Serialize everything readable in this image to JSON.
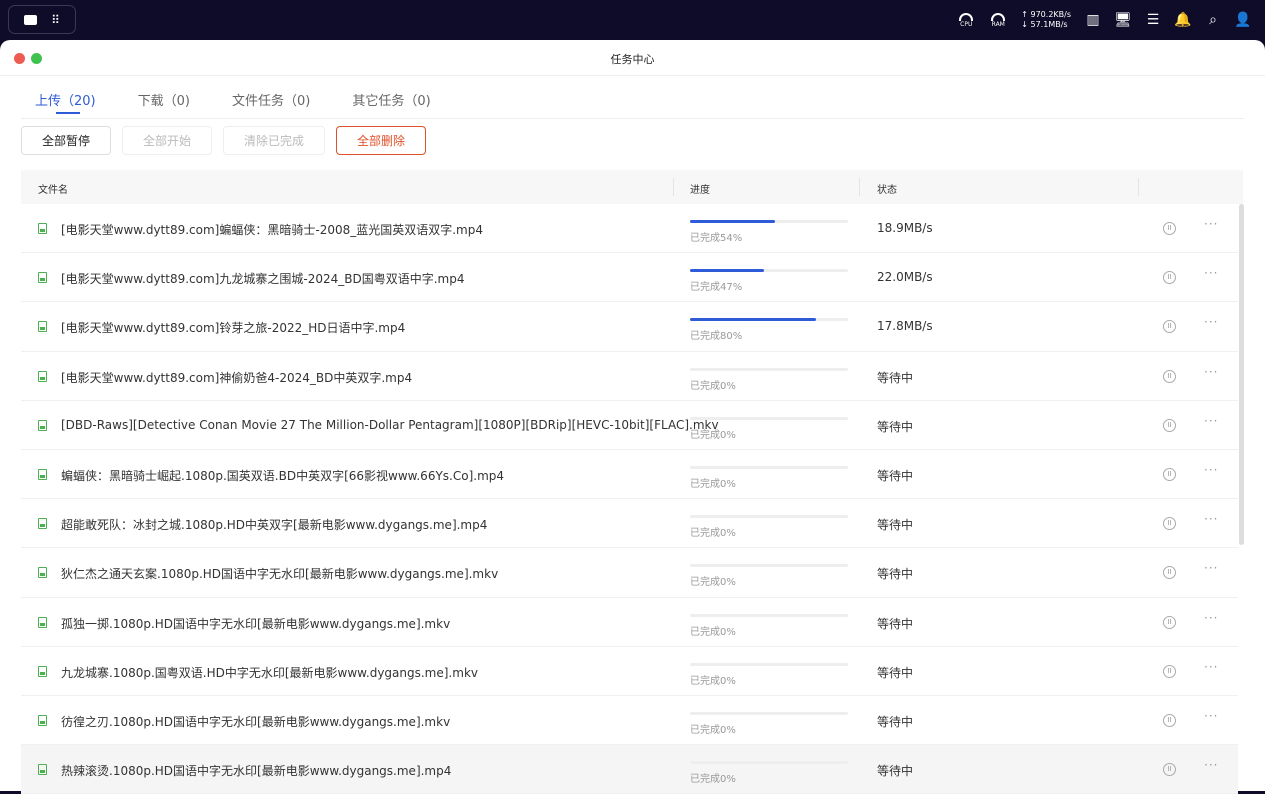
{
  "topbar": {
    "cpu": "CPU",
    "ram": "RAM",
    "upload_speed": "970.2KB/s",
    "download_speed": "57.1MB/s"
  },
  "window": {
    "title": "任务中心",
    "close_color": "#ee5b50",
    "zoom_color": "#3fc24f"
  },
  "tabs": [
    {
      "label": "上传（20)",
      "active": true
    },
    {
      "label": "下载（0)"
    },
    {
      "label": "文件任务（0)"
    },
    {
      "label": "其它任务（0)"
    }
  ],
  "toolbar": {
    "pause_all": "全部暂停",
    "start_all": "全部开始",
    "clear_done": "清除已完成",
    "delete_all": "全部删除"
  },
  "columns": {
    "name": "文件名",
    "progress": "进度",
    "status": "状态"
  },
  "accent": "#2e5bd8",
  "rows": [
    {
      "name": "[电影天堂www.dytt89.com]蝙蝠侠：黑暗骑士-2008_蓝光国英双语双字.mp4",
      "progress": 54,
      "progress_label": "已完成54%",
      "status": "18.9MB/s"
    },
    {
      "name": "[电影天堂www.dytt89.com]九龙城寨之围城-2024_BD国粤双语中字.mp4",
      "progress": 47,
      "progress_label": "已完成47%",
      "status": "22.0MB/s"
    },
    {
      "name": "[电影天堂www.dytt89.com]铃芽之旅-2022_HD日语中字.mp4",
      "progress": 80,
      "progress_label": "已完成80%",
      "status": "17.8MB/s"
    },
    {
      "name": "[电影天堂www.dytt89.com]神偷奶爸4-2024_BD中英双字.mp4",
      "progress": 0,
      "progress_label": "已完成0%",
      "status": "等待中"
    },
    {
      "name": "[DBD-Raws][Detective Conan Movie 27 The Million-Dollar Pentagram][1080P][BDRip][HEVC-10bit][FLAC].mkv",
      "progress": 0,
      "progress_label": "已完成0%",
      "status": "等待中"
    },
    {
      "name": "蝙蝠侠：黑暗骑士崛起.1080p.国英双语.BD中英双字[66影视www.66Ys.Co].mp4",
      "progress": 0,
      "progress_label": "已完成0%",
      "status": "等待中"
    },
    {
      "name": "超能敢死队：冰封之城.1080p.HD中英双字[最新电影www.dygangs.me].mp4",
      "progress": 0,
      "progress_label": "已完成0%",
      "status": "等待中"
    },
    {
      "name": "狄仁杰之通天玄案.1080p.HD国语中字无水印[最新电影www.dygangs.me].mkv",
      "progress": 0,
      "progress_label": "已完成0%",
      "status": "等待中"
    },
    {
      "name": "孤独一掷.1080p.HD国语中字无水印[最新电影www.dygangs.me].mkv",
      "progress": 0,
      "progress_label": "已完成0%",
      "status": "等待中"
    },
    {
      "name": "九龙城寨.1080p.国粤双语.HD中字无水印[最新电影www.dygangs.me].mkv",
      "progress": 0,
      "progress_label": "已完成0%",
      "status": "等待中"
    },
    {
      "name": "彷徨之刃.1080p.HD国语中字无水印[最新电影www.dygangs.me].mkv",
      "progress": 0,
      "progress_label": "已完成0%",
      "status": "等待中"
    },
    {
      "name": "热辣滚烫.1080p.HD国语中字无水印[最新电影www.dygangs.me].mp4",
      "progress": 0,
      "progress_label": "已完成0%",
      "status": "等待中"
    }
  ]
}
